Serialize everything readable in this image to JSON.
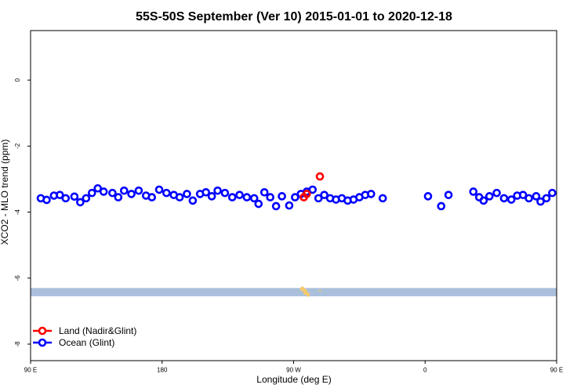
{
  "chart_data": {
    "type": "scatter",
    "title": "55S-50S September (Ver 10)   2015-01-01 to 2020-12-18",
    "xlabel": "Longitude (deg E)",
    "ylabel": "XCO2 - MLO trend (ppm)",
    "xlim": [
      90,
      450
    ],
    "ylim": [
      -8.5,
      1.5
    ],
    "x_ticks": [
      {
        "value": 90,
        "label": "90 E"
      },
      {
        "value": 180,
        "label": "180"
      },
      {
        "value": 270,
        "label": "90 W"
      },
      {
        "value": 360,
        "label": "0"
      },
      {
        "value": 450,
        "label": "90 E"
      },
      {
        "value": 540,
        "label": "180"
      }
    ],
    "y_ticks": [
      {
        "value": 0,
        "label": "0"
      },
      {
        "value": -2,
        "label": "-2"
      },
      {
        "value": -4,
        "label": "-4"
      },
      {
        "value": -6,
        "label": "-6"
      },
      {
        "value": -8,
        "label": "-8"
      }
    ],
    "colors": {
      "land": "#ff0000",
      "ocean": "#0000ff",
      "land_strip": "#a9bfdc",
      "land_mass": "#f5c96a"
    },
    "series": [
      {
        "name": "Land (Nadir&Glint)",
        "marker": "circle",
        "color": "#ff0000",
        "points": [
          {
            "x": 277,
            "y": -3.55
          },
          {
            "x": 279,
            "y": -3.45
          },
          {
            "x": 288,
            "y": -2.92
          }
        ]
      },
      {
        "name": "Ocean (Glint)",
        "marker": "circle",
        "color": "#0000ff",
        "points": [
          {
            "x": 97,
            "y": -3.58
          },
          {
            "x": 101,
            "y": -3.63
          },
          {
            "x": 106,
            "y": -3.5
          },
          {
            "x": 110,
            "y": -3.48
          },
          {
            "x": 114,
            "y": -3.58
          },
          {
            "x": 120,
            "y": -3.53
          },
          {
            "x": 124,
            "y": -3.7
          },
          {
            "x": 128,
            "y": -3.58
          },
          {
            "x": 132,
            "y": -3.42
          },
          {
            "x": 136,
            "y": -3.28
          },
          {
            "x": 140,
            "y": -3.38
          },
          {
            "x": 146,
            "y": -3.42
          },
          {
            "x": 150,
            "y": -3.55
          },
          {
            "x": 154,
            "y": -3.35
          },
          {
            "x": 159,
            "y": -3.45
          },
          {
            "x": 164,
            "y": -3.35
          },
          {
            "x": 169,
            "y": -3.5
          },
          {
            "x": 173,
            "y": -3.55
          },
          {
            "x": 178,
            "y": -3.32
          },
          {
            "x": 183,
            "y": -3.42
          },
          {
            "x": 188,
            "y": -3.48
          },
          {
            "x": 192,
            "y": -3.55
          },
          {
            "x": 197,
            "y": -3.45
          },
          {
            "x": 201,
            "y": -3.65
          },
          {
            "x": 206,
            "y": -3.45
          },
          {
            "x": 210,
            "y": -3.4
          },
          {
            "x": 214,
            "y": -3.52
          },
          {
            "x": 218,
            "y": -3.35
          },
          {
            "x": 223,
            "y": -3.42
          },
          {
            "x": 228,
            "y": -3.55
          },
          {
            "x": 233,
            "y": -3.48
          },
          {
            "x": 238,
            "y": -3.55
          },
          {
            "x": 243,
            "y": -3.58
          },
          {
            "x": 246,
            "y": -3.75
          },
          {
            "x": 250,
            "y": -3.4
          },
          {
            "x": 254,
            "y": -3.55
          },
          {
            "x": 258,
            "y": -3.82
          },
          {
            "x": 262,
            "y": -3.52
          },
          {
            "x": 267,
            "y": -3.8
          },
          {
            "x": 271,
            "y": -3.55
          },
          {
            "x": 275,
            "y": -3.45
          },
          {
            "x": 279,
            "y": -3.38
          },
          {
            "x": 283,
            "y": -3.32
          },
          {
            "x": 287,
            "y": -3.58
          },
          {
            "x": 291,
            "y": -3.48
          },
          {
            "x": 295,
            "y": -3.58
          },
          {
            "x": 299,
            "y": -3.62
          },
          {
            "x": 303,
            "y": -3.58
          },
          {
            "x": 307,
            "y": -3.65
          },
          {
            "x": 311,
            "y": -3.62
          },
          {
            "x": 315,
            "y": -3.55
          },
          {
            "x": 319,
            "y": -3.48
          },
          {
            "x": 323,
            "y": -3.45
          },
          {
            "x": 331,
            "y": -3.58
          },
          {
            "x": 362,
            "y": -3.52
          },
          {
            "x": 371,
            "y": -3.82
          },
          {
            "x": 376,
            "y": -3.48
          },
          {
            "x": 393,
            "y": -3.38
          },
          {
            "x": 397,
            "y": -3.55
          },
          {
            "x": 400,
            "y": -3.65
          },
          {
            "x": 404,
            "y": -3.52
          },
          {
            "x": 409,
            "y": -3.42
          },
          {
            "x": 414,
            "y": -3.58
          },
          {
            "x": 419,
            "y": -3.62
          },
          {
            "x": 423,
            "y": -3.5
          },
          {
            "x": 427,
            "y": -3.48
          },
          {
            "x": 431,
            "y": -3.58
          },
          {
            "x": 436,
            "y": -3.52
          },
          {
            "x": 439,
            "y": -3.68
          },
          {
            "x": 443,
            "y": -3.58
          },
          {
            "x": 447,
            "y": -3.42
          },
          {
            "x": 451,
            "y": -3.3
          },
          {
            "x": 455,
            "y": -3.38
          },
          {
            "x": 459,
            "y": -3.42
          },
          {
            "x": 462,
            "y": -3.52
          },
          {
            "x": 466,
            "y": -3.35
          },
          {
            "x": 470,
            "y": -3.45
          },
          {
            "x": 474,
            "y": -3.35
          },
          {
            "x": 477,
            "y": -3.52
          }
        ]
      }
    ],
    "legend": {
      "position": "bottom-left",
      "entries": [
        {
          "label": "Land (Nadir&Glint)",
          "color": "#ff0000"
        },
        {
          "label": "Ocean (Glint)",
          "color": "#0000ff"
        }
      ]
    },
    "land_band": {
      "y_top": -6.3,
      "y_bottom": -6.55
    }
  }
}
